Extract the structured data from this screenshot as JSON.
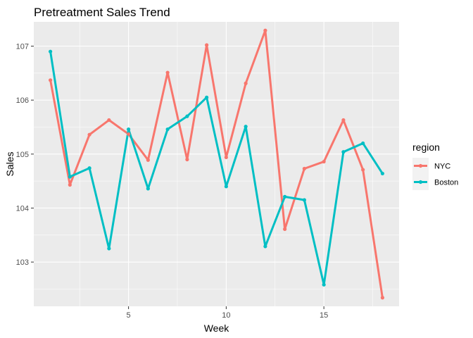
{
  "chart_data": {
    "type": "line",
    "title": "Pretreatment Sales Trend",
    "xlabel": "Week",
    "ylabel": "Sales",
    "xlim": [
      0.15,
      18.85
    ],
    "ylim": [
      102.18,
      107.45
    ],
    "xticks": [
      5,
      10,
      15
    ],
    "yticks": [
      103,
      104,
      105,
      106,
      107
    ],
    "grid": true,
    "legend_title": "region",
    "legend_position": "right",
    "x": [
      1,
      2,
      3,
      4,
      5,
      6,
      7,
      8,
      9,
      10,
      11,
      12,
      13,
      14,
      15,
      16,
      17,
      18
    ],
    "series": [
      {
        "name": "NYC",
        "color": "#F8766D",
        "values": [
          106.37,
          104.43,
          105.36,
          105.63,
          105.37,
          104.89,
          106.51,
          104.9,
          107.02,
          104.94,
          106.31,
          107.29,
          103.61,
          104.73,
          104.86,
          105.63,
          104.71,
          102.34
        ]
      },
      {
        "name": "Boston",
        "color": "#00BFC4",
        "values": [
          106.9,
          104.58,
          104.74,
          103.25,
          105.46,
          104.36,
          105.46,
          105.7,
          106.05,
          104.4,
          105.51,
          103.29,
          104.21,
          104.15,
          102.58,
          105.04,
          105.2,
          104.64
        ]
      }
    ]
  }
}
